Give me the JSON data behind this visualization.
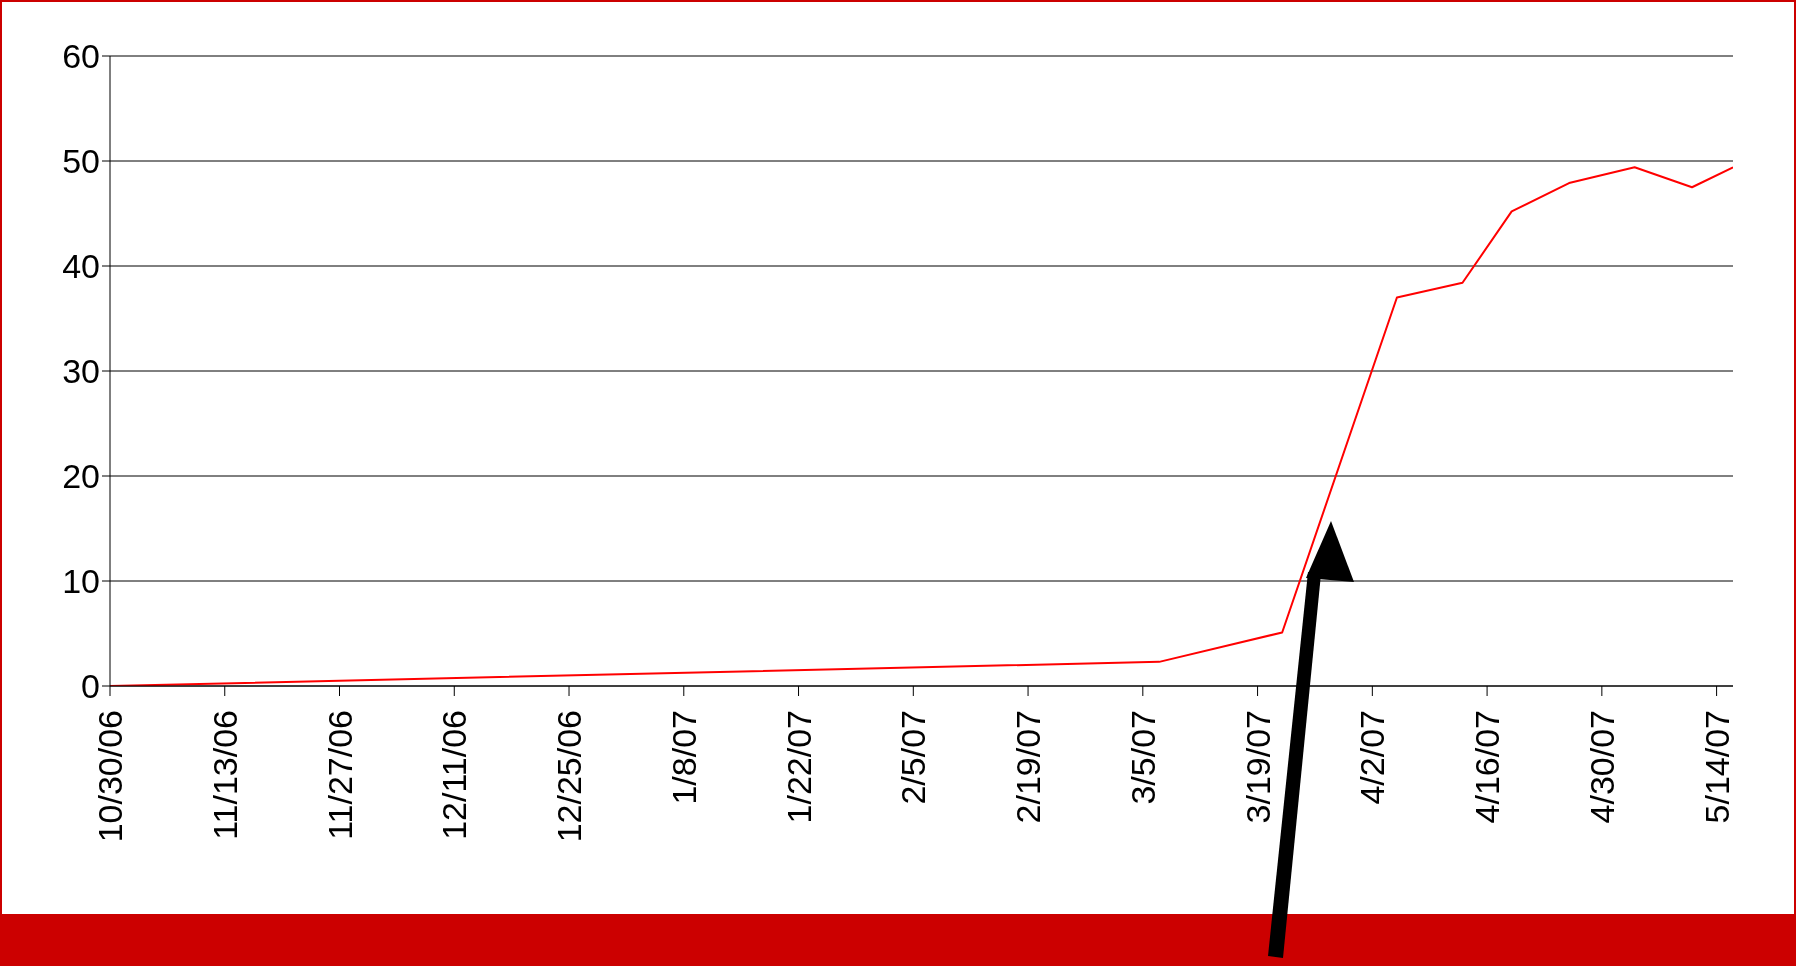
{
  "chart_data": {
    "type": "line",
    "x": [
      "2006-10-30",
      "2007-03-07",
      "2007-03-22",
      "2007-04-05",
      "2007-04-13",
      "2007-04-19",
      "2007-04-26",
      "2007-05-04",
      "2007-05-11",
      "2007-05-16"
    ],
    "series": [
      {
        "color": "#ff0000",
        "values": [
          0,
          2.3,
          5.1,
          37.0,
          38.4,
          45.2,
          47.9,
          49.4,
          47.5,
          49.4
        ]
      }
    ],
    "xlim": [
      "2006-10-30",
      "2007-05-16"
    ],
    "xticks": [
      {
        "value": "2006-10-30",
        "label": "10/30/06"
      },
      {
        "value": "2006-11-13",
        "label": "11/13/06"
      },
      {
        "value": "2006-11-27",
        "label": "11/27/06"
      },
      {
        "value": "2006-12-11",
        "label": "12/11/06"
      },
      {
        "value": "2006-12-25",
        "label": "12/25/06"
      },
      {
        "value": "2007-01-08",
        "label": "1/8/07"
      },
      {
        "value": "2007-01-22",
        "label": "1/22/07"
      },
      {
        "value": "2007-02-05",
        "label": "2/5/07"
      },
      {
        "value": "2007-02-19",
        "label": "2/19/07"
      },
      {
        "value": "2007-03-05",
        "label": "3/5/07"
      },
      {
        "value": "2007-03-19",
        "label": "3/19/07"
      },
      {
        "value": "2007-04-02",
        "label": "4/2/07"
      },
      {
        "value": "2007-04-16",
        "label": "4/16/07"
      },
      {
        "value": "2007-04-30",
        "label": "4/30/07"
      },
      {
        "value": "2007-05-14",
        "label": "5/14/07"
      }
    ],
    "ylim": [
      0,
      60
    ],
    "yticks": [
      0,
      10,
      20,
      30,
      40,
      50,
      60
    ],
    "grid": "y",
    "legend": false,
    "marker": "none",
    "line_style": "solid"
  }
}
